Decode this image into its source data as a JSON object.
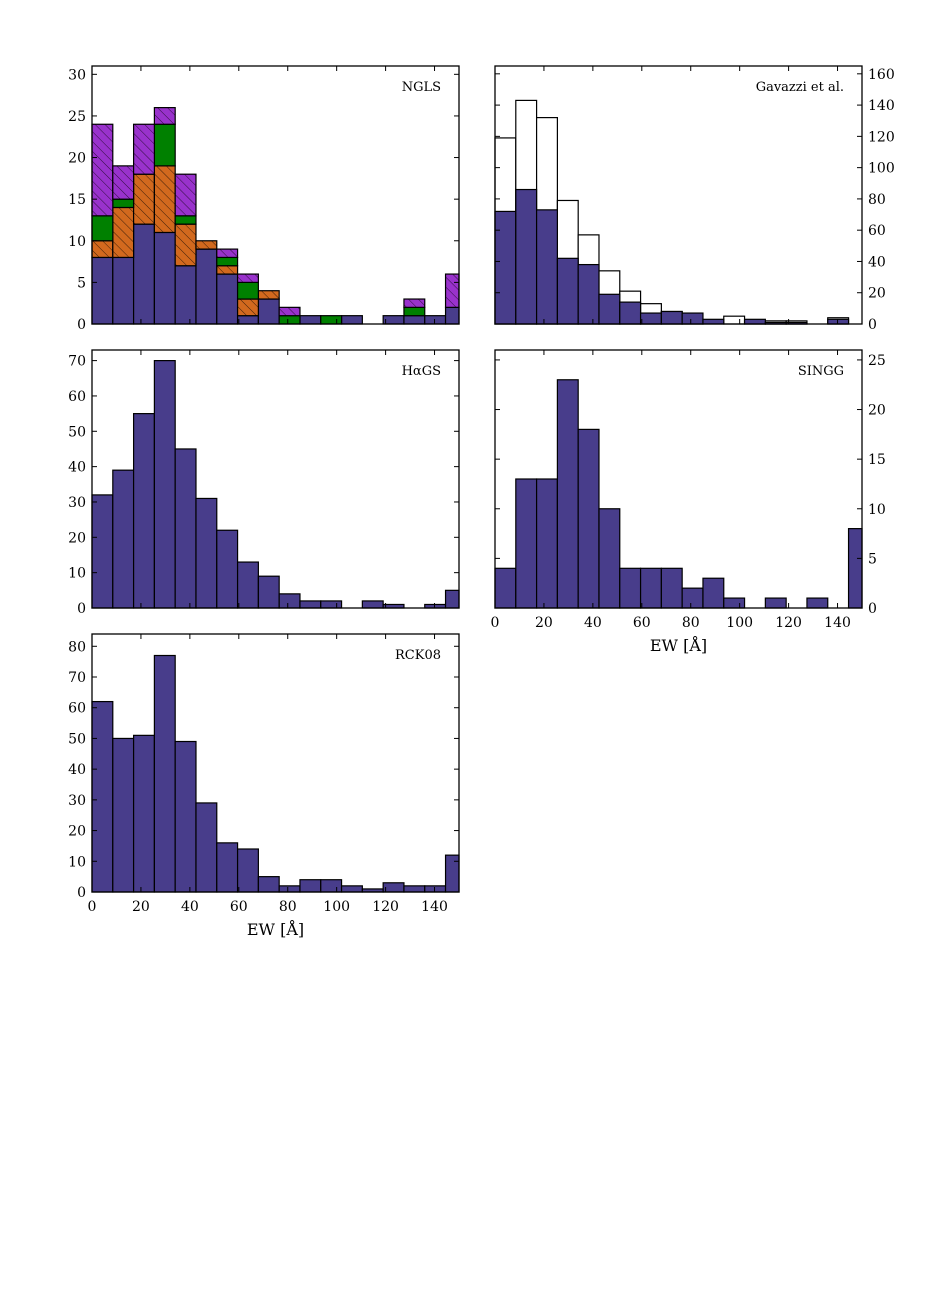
{
  "figure": {
    "description_free": true
  },
  "colors": {
    "base": "#483d8b",
    "orange": "#d2691e",
    "green": "#008000",
    "purple": "#9932cc",
    "outline": "#000000"
  },
  "chart_data": [
    {
      "id": "ngls",
      "type": "bar",
      "stacked": true,
      "title": "NGLS",
      "xlabel": "",
      "ylabel": "",
      "xlim": [
        0,
        150
      ],
      "ylim": [
        0,
        31
      ],
      "bin_width": 8.5,
      "x_ticks": [],
      "y_ticks": [
        0,
        5,
        10,
        15,
        20,
        25,
        30
      ],
      "y_axis_side": "left",
      "series": [
        {
          "name": "base",
          "color": "#483d8b",
          "hatch": false,
          "values": [
            8,
            8,
            12,
            11,
            7,
            9,
            6,
            1,
            3,
            0,
            1,
            0,
            1,
            0,
            1,
            1,
            1,
            2
          ]
        },
        {
          "name": "orange",
          "color": "#d2691e",
          "hatch": true,
          "values": [
            2,
            6,
            6,
            8,
            5,
            1,
            1,
            2,
            1,
            0,
            0,
            0,
            0,
            0,
            0,
            0,
            0,
            0
          ]
        },
        {
          "name": "green",
          "color": "#008000",
          "hatch": false,
          "values": [
            3,
            1,
            0,
            5,
            1,
            0,
            1,
            2,
            0,
            1,
            0,
            1,
            0,
            0,
            0,
            1,
            0,
            0
          ]
        },
        {
          "name": "purple",
          "color": "#9932cc",
          "hatch": true,
          "values": [
            11,
            4,
            6,
            2,
            5,
            0,
            1,
            1,
            0,
            1,
            0,
            0,
            0,
            0,
            0,
            1,
            0,
            4
          ]
        }
      ]
    },
    {
      "id": "gavazzi",
      "type": "bar",
      "overlay": true,
      "title": "Gavazzi et al.",
      "xlabel": "",
      "ylabel": "",
      "xlim": [
        0,
        150
      ],
      "ylim": [
        0,
        165
      ],
      "bin_width": 8.5,
      "x_ticks": [],
      "y_ticks": [
        0,
        20,
        40,
        60,
        80,
        100,
        120,
        140,
        160
      ],
      "y_axis_side": "right",
      "series": [
        {
          "name": "all",
          "color": "#ffffff",
          "hatch": false,
          "values": [
            119,
            143,
            132,
            79,
            57,
            34,
            21,
            13,
            8,
            3,
            0,
            5,
            2,
            2,
            2,
            0,
            4
          ]
        },
        {
          "name": "base",
          "color": "#483d8b",
          "hatch": false,
          "values": [
            72,
            86,
            73,
            42,
            38,
            19,
            14,
            7,
            8,
            7,
            3,
            0,
            3,
            1,
            1,
            0,
            3
          ]
        }
      ]
    },
    {
      "id": "hags",
      "type": "bar",
      "title": "HαGS",
      "xlabel": "",
      "ylabel": "",
      "xlim": [
        0,
        150
      ],
      "ylim": [
        0,
        73
      ],
      "bin_width": 8.5,
      "x_ticks": [],
      "y_ticks": [
        0,
        10,
        20,
        30,
        40,
        50,
        60,
        70
      ],
      "y_axis_side": "left",
      "series": [
        {
          "name": "base",
          "color": "#483d8b",
          "hatch": false,
          "values": [
            32,
            39,
            55,
            70,
            45,
            31,
            22,
            13,
            9,
            4,
            2,
            2,
            0,
            2,
            1,
            0,
            1,
            5
          ]
        }
      ]
    },
    {
      "id": "singg",
      "type": "bar",
      "title": "SINGG",
      "xlabel": "EW [Å]",
      "ylabel": "",
      "xlim": [
        0,
        150
      ],
      "ylim": [
        0,
        26
      ],
      "bin_width": 8.5,
      "x_ticks": [
        0,
        20,
        40,
        60,
        80,
        100,
        120,
        140
      ],
      "y_ticks": [
        0,
        5,
        10,
        15,
        20,
        25
      ],
      "y_axis_side": "right",
      "series": [
        {
          "name": "base",
          "color": "#483d8b",
          "hatch": false,
          "values": [
            4,
            13,
            13,
            23,
            18,
            10,
            4,
            4,
            4,
            2,
            3,
            1,
            0,
            1,
            0,
            1,
            0,
            8
          ]
        }
      ]
    },
    {
      "id": "rck08",
      "type": "bar",
      "title": "RCK08",
      "xlabel": "EW [Å]",
      "ylabel": "",
      "xlim": [
        0,
        150
      ],
      "ylim": [
        0,
        84
      ],
      "bin_width": 8.5,
      "x_ticks": [
        0,
        20,
        40,
        60,
        80,
        100,
        120,
        140
      ],
      "y_ticks": [
        0,
        10,
        20,
        30,
        40,
        50,
        60,
        70,
        80
      ],
      "y_axis_side": "left",
      "series": [
        {
          "name": "base",
          "color": "#483d8b",
          "hatch": false,
          "values": [
            62,
            50,
            51,
            77,
            49,
            29,
            16,
            14,
            5,
            2,
            4,
            4,
            2,
            1,
            3,
            2,
            2,
            12
          ]
        }
      ]
    }
  ]
}
